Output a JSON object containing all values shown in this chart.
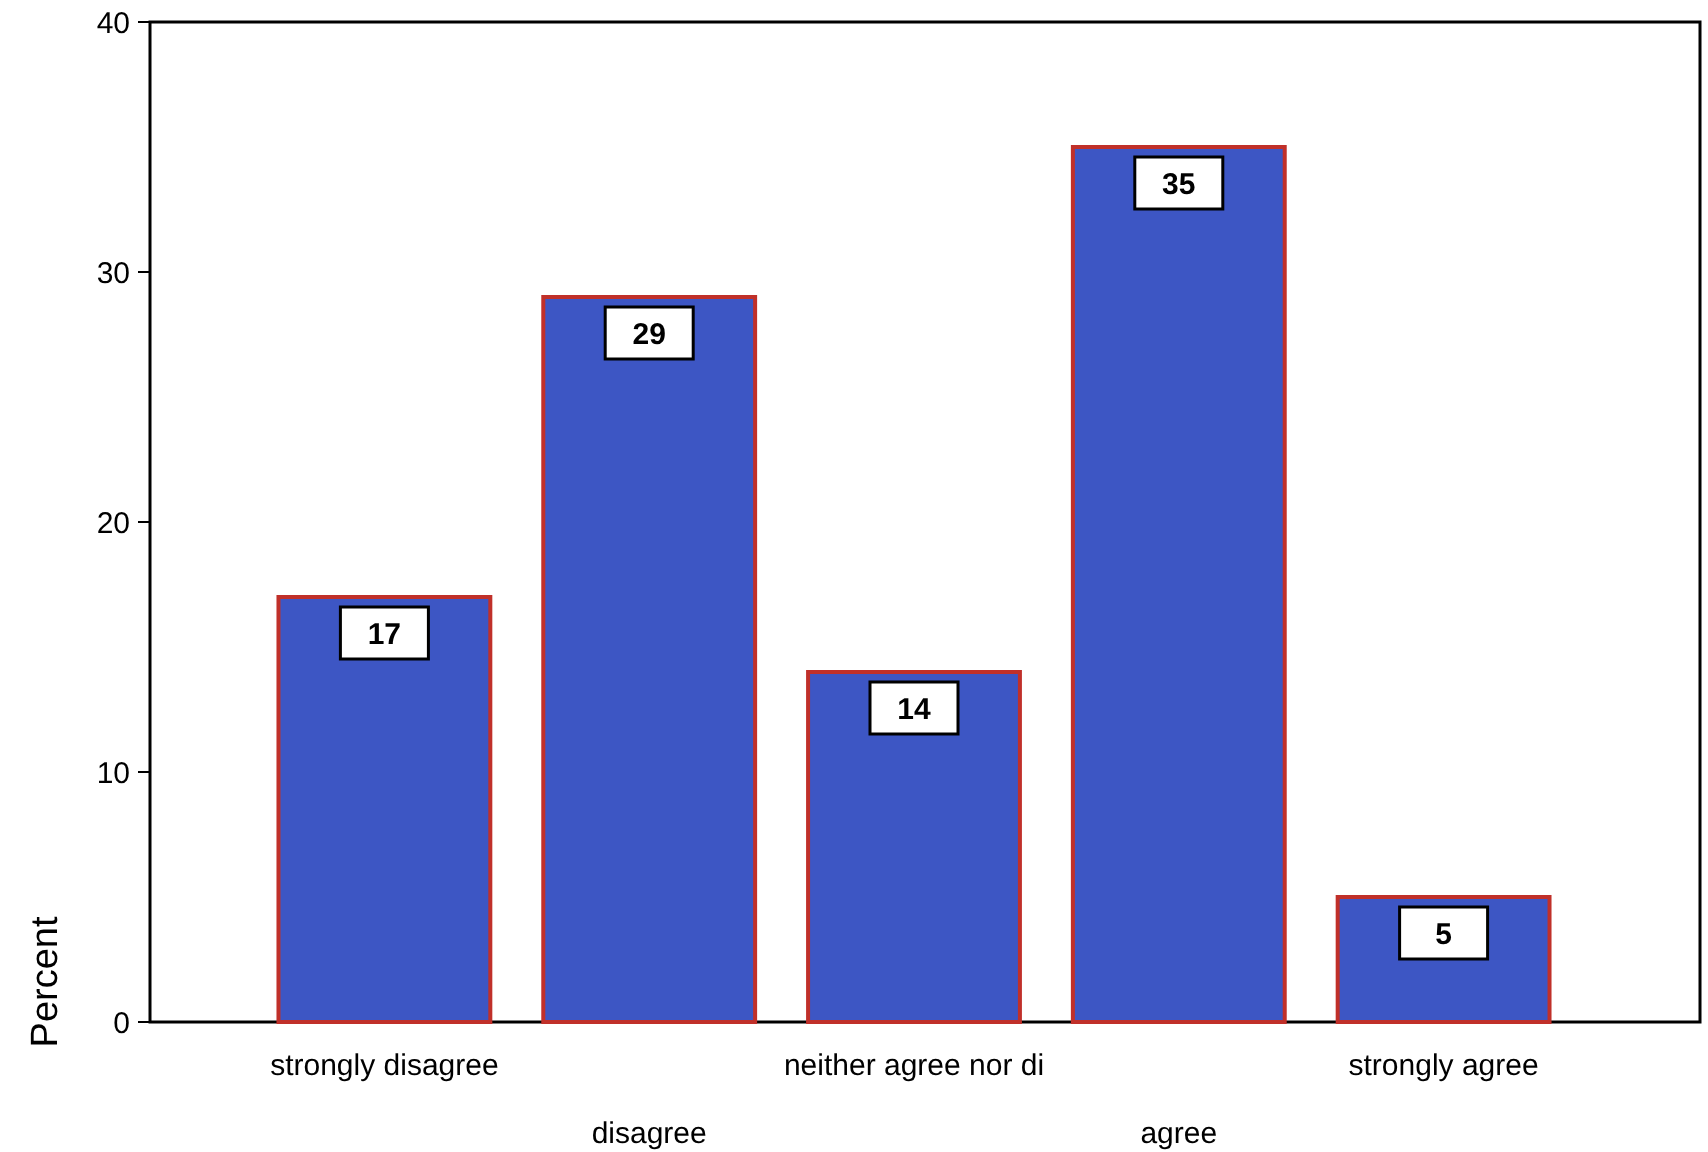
{
  "chart_data": {
    "type": "bar",
    "ylabel": "Percent",
    "categories": [
      "strongly disagree",
      "disagree",
      "neither agree nor di",
      "agree",
      "strongly agree"
    ],
    "values": [
      17,
      29,
      14,
      35,
      5
    ],
    "color": "#3d56c4",
    "ylim": [
      0,
      40
    ],
    "yticks": [
      0,
      10,
      20,
      30,
      40
    ],
    "grid": false,
    "data_labels": true
  }
}
